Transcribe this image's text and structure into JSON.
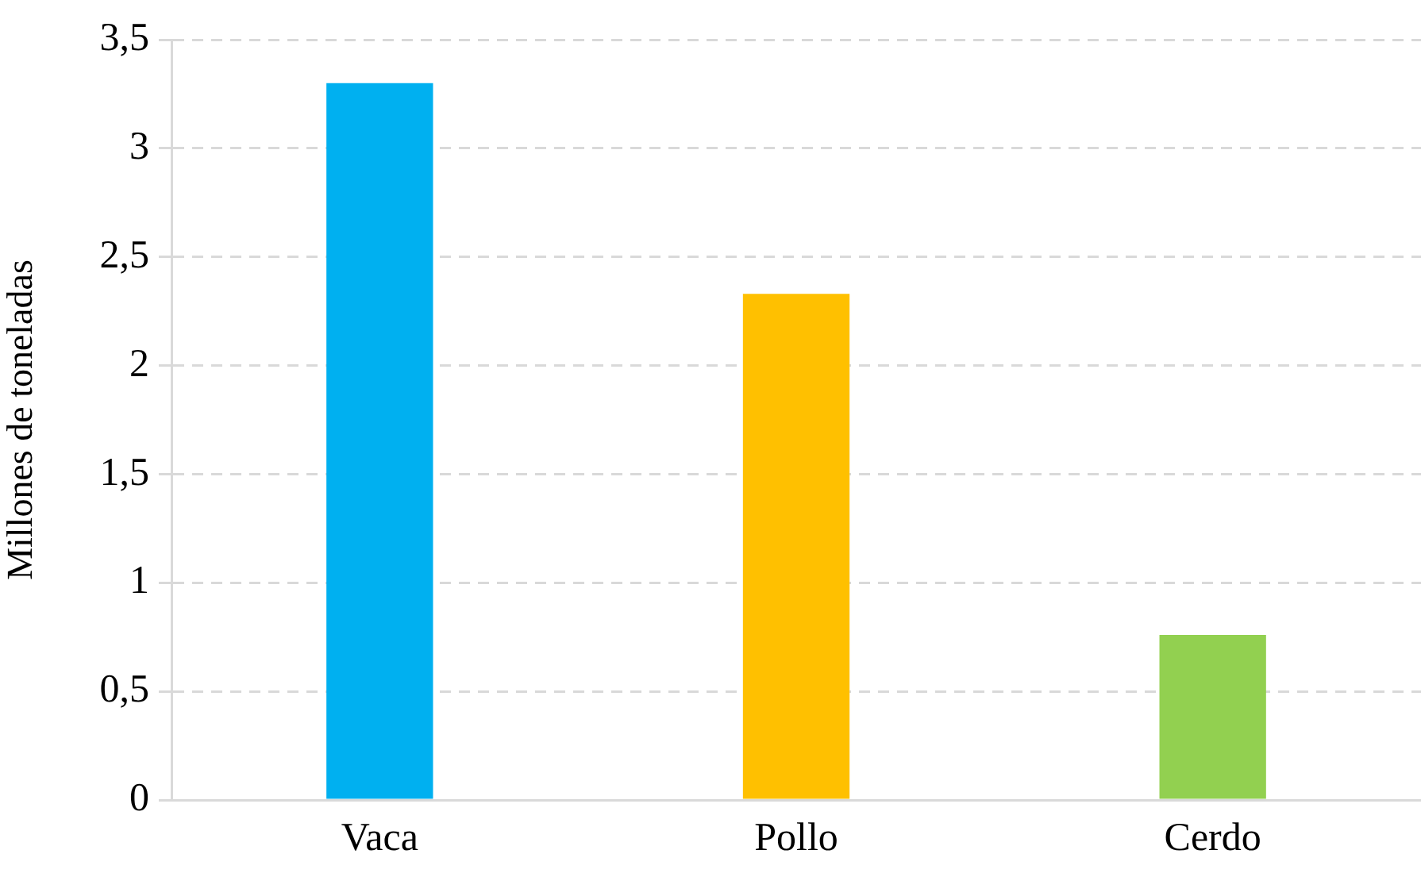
{
  "chart_data": {
    "type": "bar",
    "ylabel": "Millones de toneladas",
    "categories": [
      "Vaca",
      "Pollo",
      "Cerdo"
    ],
    "values": [
      3.3,
      2.33,
      0.76
    ],
    "colors": [
      "#00b0f0",
      "#ffc000",
      "#92d050"
    ],
    "ylim": [
      0,
      3.5
    ],
    "yticks": [
      0,
      {
        "value": 0.5,
        "label": "0,5"
      },
      1,
      {
        "value": 1.5,
        "label": "1,5"
      },
      2,
      {
        "value": 2.5,
        "label": "2,5"
      },
      3,
      {
        "value": 3.5,
        "label": "3,5"
      }
    ],
    "grid": "y",
    "legend": false
  }
}
